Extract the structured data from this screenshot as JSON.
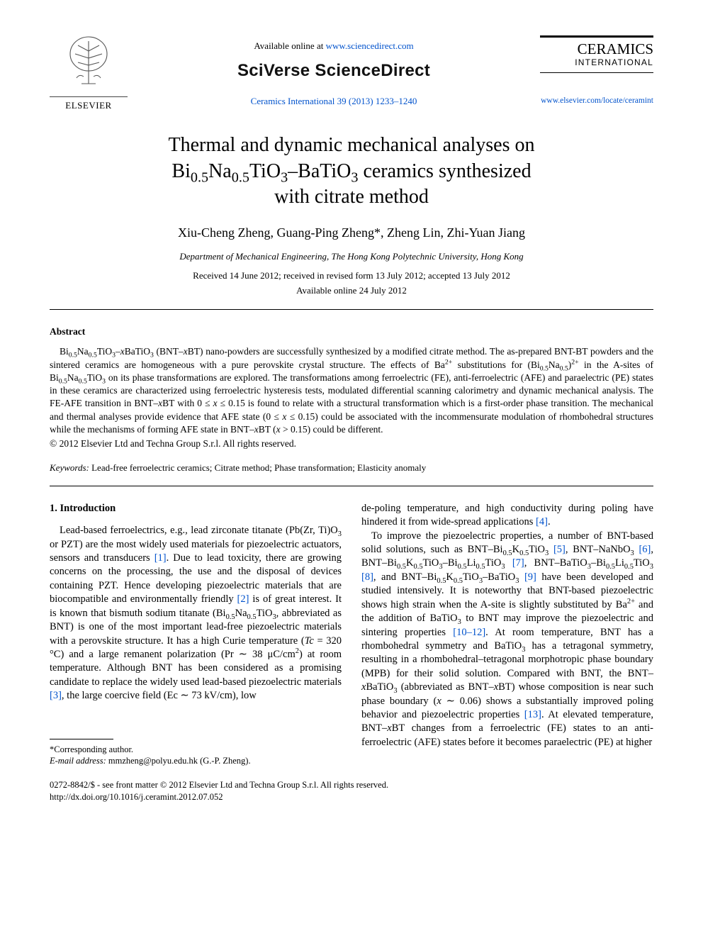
{
  "header": {
    "elsevier_label": "ELSEVIER",
    "available_prefix": "Available online at ",
    "available_url": "www.sciencedirect.com",
    "sciverse": "SciVerse ScienceDirect",
    "journal_ref": "Ceramics International 39 (2013) 1233–1240",
    "journal_title": "CERAMICS",
    "journal_sub": "INTERNATIONAL",
    "journal_url": "www.elsevier.com/locate/ceramint"
  },
  "title": "Thermal and dynamic mechanical analyses on Bi₀.₅Na₀.₅TiO₃–BaTiO₃ ceramics synthesized with citrate method",
  "authors": "Xiu-Cheng Zheng, Guang-Ping Zheng*, Zheng Lin, Zhi-Yuan Jiang",
  "affiliation": "Department of Mechanical Engineering, The Hong Kong Polytechnic University, Hong Kong",
  "dates_line1": "Received 14 June 2012; received in revised form 13 July 2012; accepted 13 July 2012",
  "dates_line2": "Available online 24 July 2012",
  "abstract": {
    "heading": "Abstract",
    "body_html": "Bi<sub>0.5</sub>Na<sub>0.5</sub>TiO<sub>3</sub>–<span class='ital'>x</span>BaTiO<sub>3</sub> (BNT–<span class='ital'>x</span>BT) nano-powders are successfully synthesized by a modified citrate method. The as-prepared BNT-BT powders and the sintered ceramics are homogeneous with a pure perovskite crystal structure. The effects of Ba<sup>2+</sup> substitutions for (Bi<sub>0.5</sub>Na<sub>0.5</sub>)<sup>2+</sup> in the A-sites of Bi<sub>0.5</sub>Na<sub>0.5</sub>TiO<sub>3</sub> on its phase transformations are explored. The transformations among ferroelectric (FE), anti-ferroelectric (AFE) and paraelectric (PE) states in these ceramics are characterized using ferroelectric hysteresis tests, modulated differential scanning calorimetry and dynamic mechanical analysis. The FE-AFE transition in BNT–<span class='ital'>x</span>BT with 0 ≤ <span class='ital'>x</span> ≤ 0.15 is found to relate with a structural transformation which is a first-order phase transition. The mechanical and thermal analyses provide evidence that AFE state (0 ≤ <span class='ital'>x</span> ≤ 0.15) could be associated with the incommensurate modulation of rhombohedral structures while the mechanisms of forming AFE state in BNT–<span class='ital'>x</span>BT (<span class='ital'>x</span> > 0.15) could be different.",
    "copyright": "© 2012 Elsevier Ltd and Techna Group S.r.l. All rights reserved."
  },
  "keywords": {
    "label": "Keywords:",
    "text": " Lead-free ferroelectric ceramics; Citrate method; Phase transformation; Elasticity anomaly"
  },
  "section1": {
    "heading": "1. Introduction",
    "col1_html": "Lead-based ferroelectrics, e.g., lead zirconate titanate (Pb(Zr, Ti)O<sub>3</sub> or PZT) are the most widely used materials for piezoelectric actuators, sensors and transducers <span class='ref-link'>[1]</span>. Due to lead toxicity, there are growing concerns on the processing, the use and the disposal of devices containing PZT. Hence developing piezoelectric materials that are biocompatible and environmentally friendly <span class='ref-link'>[2]</span> is of great interest. It is known that bismuth sodium titanate (Bi<sub>0.5</sub>Na<sub>0.5</sub>TiO<sub>3</sub>, abbreviated as BNT) is one of the most important lead-free piezoelectric materials with a perovskite structure. It has a high Curie temperature (<span class='ital'>Tc</span> = 320 °C) and a large remanent polarization (Pr ∼ 38 μC/cm<sup>2</sup>) at room temperature. Although BNT has been considered as a promising candidate to replace the widely used lead-based piezoelectric materials <span class='ref-link'>[3]</span>, the large coercive field (Ec ∼ 73 kV/cm), low",
    "col2_p1_html": "de-poling temperature, and high conductivity during poling have hindered it from wide-spread applications <span class='ref-link'>[4]</span>.",
    "col2_p2_html": "To improve the piezoelectric properties, a number of BNT-based solid solutions, such as BNT–Bi<sub>0.5</sub>K<sub>0.5</sub>TiO<sub>3</sub> <span class='ref-link'>[5]</span>, BNT–NaNbO<sub>3</sub> <span class='ref-link'>[6]</span>, BNT–Bi<sub>0.5</sub>K<sub>0.5</sub>TiO<sub>3</sub>–Bi<sub>0.5</sub>Li<sub>0.5</sub>TiO<sub>3</sub> <span class='ref-link'>[7]</span>, BNT–BaTiO<sub>3</sub>–Bi<sub>0.5</sub>Li<sub>0.5</sub>TiO<sub>3</sub> <span class='ref-link'>[8]</span>, and BNT–Bi<sub>0.5</sub>K<sub>0.5</sub>TiO<sub>3</sub>–BaTiO<sub>3</sub> <span class='ref-link'>[9]</span> have been developed and studied intensively. It is noteworthy that BNT-based piezoelectric shows high strain when the A-site is slightly substituted by Ba<sup>2+</sup> and the addition of BaTiO<sub>3</sub> to BNT may improve the piezoelectric and sintering properties <span class='ref-link'>[10–12]</span>. At room temperature, BNT has a rhombohedral symmetry and BaTiO<sub>3</sub> has a tetragonal symmetry, resulting in a rhombohedral–tetragonal morphotropic phase boundary (MPB) for their solid solution. Compared with BNT, the BNT–<span class='ital'>x</span>BaTiO<sub>3</sub> (abbreviated as BNT–<span class='ital'>x</span>BT) whose composition is near such phase boundary (<span class='ital'>x</span> ∼ 0.06) shows a substantially improved poling behavior and piezoelectric properties <span class='ref-link'>[13]</span>. At elevated temperature, BNT–<span class='ital'>x</span>BT changes from a ferroelectric (FE) states to an anti-ferroelectric (AFE) states before it becomes paraelectric (PE) at higher"
  },
  "footnote": {
    "corresponding": "*Corresponding author.",
    "email_label": "E-mail address:",
    "email_value": " mmzheng@polyu.edu.hk (G.-P. Zheng)."
  },
  "footer": {
    "line1": "0272-8842/$ - see front matter © 2012 Elsevier Ltd and Techna Group S.r.l. All rights reserved.",
    "line2": "http://dx.doi.org/10.1016/j.ceramint.2012.07.052"
  },
  "colors": {
    "link": "#0052cc",
    "text": "#000000",
    "bg": "#ffffff"
  }
}
